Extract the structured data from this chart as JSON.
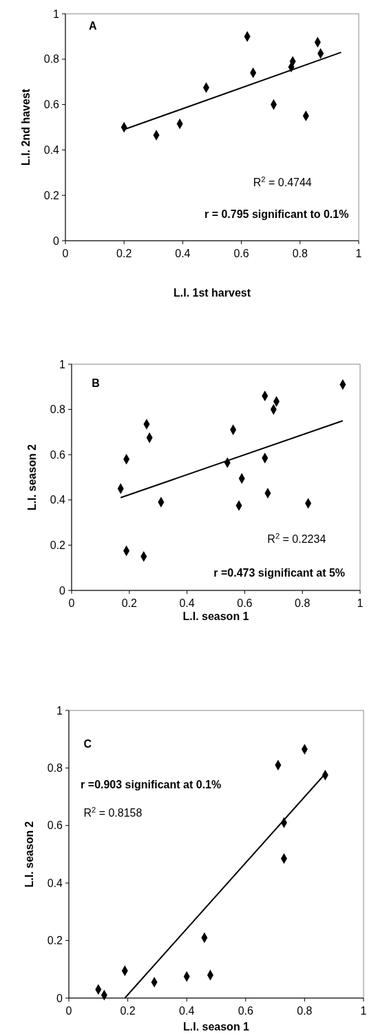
{
  "chart_data": [
    {
      "type": "scatter",
      "xlabel": "L.I. 1st harvest",
      "ylabel": "L.I. 2nd havest",
      "xlim": [
        0,
        1
      ],
      "ylim": [
        0,
        1
      ],
      "xticks": [
        0,
        0.2,
        0.4,
        0.6,
        0.8,
        1
      ],
      "yticks": [
        0,
        0.2,
        0.4,
        0.6,
        0.8,
        1
      ],
      "grid": false,
      "annotations": [
        "A",
        "R$^{2}$ = 0.4744",
        "r = 0.795  significant to 0.1%"
      ],
      "series": [
        {
          "marker": "diamond",
          "color": "#000000",
          "x": [
            0.2,
            0.31,
            0.39,
            0.48,
            0.62,
            0.64,
            0.71,
            0.77,
            0.775,
            0.82,
            0.86,
            0.87
          ],
          "values": [
            0.5,
            0.465,
            0.515,
            0.675,
            0.9,
            0.74,
            0.6,
            0.765,
            0.79,
            0.55,
            0.875,
            0.825
          ]
        },
        {
          "type": "line",
          "marker": "none",
          "line_style": "solid",
          "color": "#000000",
          "x": [
            0.2,
            0.94
          ],
          "values": [
            0.49,
            0.83
          ]
        }
      ]
    },
    {
      "type": "scatter",
      "xlabel": "L.I. season 1",
      "ylabel": "L.I. season 2",
      "xlim": [
        0,
        1
      ],
      "ylim": [
        0,
        1
      ],
      "xticks": [
        0,
        0.2,
        0.4,
        0.6,
        0.8,
        1
      ],
      "yticks": [
        0,
        0.2,
        0.4,
        0.6,
        0.8,
        1
      ],
      "grid": false,
      "annotations": [
        "B",
        "R$^{2}$ = 0.2234",
        "r =0.473 significant at 5%"
      ],
      "series": [
        {
          "marker": "diamond",
          "color": "#000000",
          "x": [
            0.17,
            0.19,
            0.19,
            0.25,
            0.26,
            0.27,
            0.31,
            0.54,
            0.56,
            0.58,
            0.59,
            0.67,
            0.67,
            0.68,
            0.7,
            0.71,
            0.82,
            0.94
          ],
          "values": [
            0.45,
            0.58,
            0.175,
            0.15,
            0.735,
            0.675,
            0.39,
            0.565,
            0.71,
            0.375,
            0.495,
            0.86,
            0.585,
            0.43,
            0.8,
            0.835,
            0.385,
            0.91
          ]
        },
        {
          "type": "line",
          "marker": "none",
          "line_style": "solid",
          "color": "#000000",
          "x": [
            0.17,
            0.94
          ],
          "values": [
            0.41,
            0.75
          ]
        }
      ]
    },
    {
      "type": "scatter",
      "xlabel": "L.I. season 1",
      "ylabel": "L.I. season 2",
      "xlim": [
        0,
        1
      ],
      "ylim": [
        0,
        1
      ],
      "xticks": [
        0,
        0.2,
        0.4,
        0.6,
        0.8,
        1
      ],
      "yticks": [
        0,
        0.2,
        0.4,
        0.6,
        0.8,
        1
      ],
      "grid": false,
      "annotations": [
        "C",
        "r =0.903 significant at 0.1%",
        "R$^{2}$ = 0.8158"
      ],
      "series": [
        {
          "marker": "diamond",
          "color": "#000000",
          "x": [
            0.1,
            0.12,
            0.19,
            0.29,
            0.4,
            0.46,
            0.48,
            0.71,
            0.73,
            0.73,
            0.8,
            0.87
          ],
          "values": [
            0.03,
            0.01,
            0.095,
            0.055,
            0.075,
            0.21,
            0.08,
            0.81,
            0.61,
            0.485,
            0.865,
            0.775
          ]
        },
        {
          "type": "line",
          "marker": "none",
          "line_style": "solid",
          "color": "#000000",
          "x": [
            0.19,
            0.87
          ],
          "values": [
            0,
            0.78
          ]
        }
      ]
    }
  ]
}
